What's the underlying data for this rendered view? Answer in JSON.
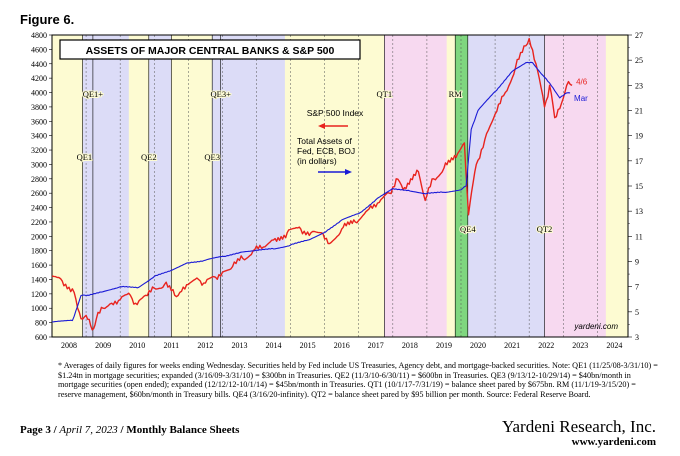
{
  "figure_label": "Figure 6.",
  "footnote": "* Averages of daily figures for weeks ending Wednesday. Securities held by Fed include US Treasuries, Agency debt, and mortgage-backed securities. Note: QE1 (11/25/08-3/31/10) = $1.24tn in mortgage securities; expanded (3/16/09-3/31/10) = $300bn in Treasuries. QE2 (11/3/10-6/30/11) = $600bn in Treasuries. QE3 (9/13/12-10/29/14) = $40bn/month in mortgage securities (open ended); expanded (12/12/12-10/1/14) = $45bn/month in Treasuries. QT1 (10/1/17-7/31/19) = balance sheet pared by $675bn. RM (11/1/19-3/15/20) = reserve management, $60bn/month in Treasury bills. QE4 (3/16/20-infinity). QT2 = balance sheet pared by $95 billion per month. Source: Federal Reserve Board.",
  "footer": {
    "page": "Page 3 /",
    "date": "April 7, 2023",
    "sep": "/",
    "section": "Monthly Balance Sheets",
    "brand": "Yardeni Research, Inc.",
    "url": "www.yardeni.com"
  },
  "chart_data": {
    "type": "line",
    "title": "ASSETS OF MAJOR CENTRAL BANKS & S&P 500",
    "watermark": "yardeni.com",
    "x_range": [
      2008.0,
      2024.9
    ],
    "x_ticks": [
      "2008",
      "2009",
      "2010",
      "2011",
      "2012",
      "2013",
      "2014",
      "2015",
      "2016",
      "2017",
      "2018",
      "2019",
      "2020",
      "2021",
      "2022",
      "2023",
      "2024"
    ],
    "left_axis": {
      "min": 600,
      "max": 4800,
      "step": 200,
      "ticks": [
        "600",
        "800",
        "1000",
        "1200",
        "1400",
        "1600",
        "1800",
        "2000",
        "2200",
        "2400",
        "2600",
        "2800",
        "3000",
        "3200",
        "3400",
        "3600",
        "3800",
        "4000",
        "4200",
        "4400",
        "4600",
        "4800"
      ]
    },
    "right_axis": {
      "min": 3,
      "max": 27,
      "step": 2,
      "ticks": [
        "3",
        "5",
        "7",
        "9",
        "11",
        "13",
        "15",
        "17",
        "19",
        "21",
        "23",
        "25",
        "27"
      ]
    },
    "periods": [
      {
        "label": "QE1",
        "start": 2008.9,
        "end": 2010.25,
        "color": "#dcdcf7"
      },
      {
        "label": "QE1+",
        "start": 2009.2,
        "end": 2010.25,
        "color": "#dcdcf7"
      },
      {
        "label": "QE2",
        "start": 2010.84,
        "end": 2011.5,
        "color": "#dcdcf7"
      },
      {
        "label": "QE3",
        "start": 2012.7,
        "end": 2014.83,
        "color": "#dcdcf7"
      },
      {
        "label": "QE3+",
        "start": 2012.95,
        "end": 2014.83,
        "color": "#dcdcf7"
      },
      {
        "label": "QT1",
        "start": 2017.75,
        "end": 2019.58,
        "color": "#f7d9f0"
      },
      {
        "label": "RM",
        "start": 2019.83,
        "end": 2020.2,
        "color": "#7fd67f"
      },
      {
        "label": "QE4",
        "start": 2020.2,
        "end": 2022.45,
        "color": "#dcdcf7"
      },
      {
        "label": "QT2",
        "start": 2022.45,
        "end": 2024.25,
        "color": "#f7d9f0"
      }
    ],
    "series": [
      {
        "name": "S&P 500 Index",
        "axis": "left",
        "color": "#e8231e",
        "end_label": "4/6",
        "x": [
          2008.0,
          2008.3,
          2008.6,
          2008.75,
          2008.9,
          2009.0,
          2009.18,
          2009.3,
          2009.5,
          2009.75,
          2010.0,
          2010.3,
          2010.5,
          2010.75,
          2011.0,
          2011.3,
          2011.6,
          2011.75,
          2012.0,
          2012.3,
          2012.5,
          2012.8,
          2013.0,
          2013.3,
          2013.6,
          2013.9,
          2014.2,
          2014.5,
          2014.9,
          2015.3,
          2015.6,
          2015.9,
          2016.1,
          2016.5,
          2016.9,
          2017.3,
          2017.6,
          2017.9,
          2018.1,
          2018.3,
          2018.75,
          2018.95,
          2019.2,
          2019.5,
          2019.9,
          2020.1,
          2020.22,
          2020.45,
          2020.7,
          2021.0,
          2021.3,
          2021.6,
          2021.9,
          2022.0,
          2022.2,
          2022.45,
          2022.6,
          2022.75,
          2022.95,
          2023.1,
          2023.26
        ],
        "y": [
          1450,
          1380,
          1270,
          1000,
          850,
          900,
          700,
          850,
          1000,
          1070,
          1120,
          1180,
          1050,
          1180,
          1280,
          1330,
          1180,
          1220,
          1330,
          1400,
          1350,
          1430,
          1500,
          1580,
          1690,
          1800,
          1850,
          1950,
          2050,
          2100,
          2050,
          2050,
          1900,
          2100,
          2200,
          2380,
          2470,
          2600,
          2800,
          2650,
          2900,
          2500,
          2800,
          2950,
          3150,
          3300,
          2300,
          3000,
          3350,
          3700,
          4000,
          4350,
          4650,
          4750,
          4400,
          3800,
          4100,
          3650,
          3850,
          4100,
          4100
        ]
      },
      {
        "name": "Total Assets of Fed, ECB, BOJ (in dollars)",
        "axis": "right",
        "color": "#1a1ad6",
        "end_label": "Mar",
        "x": [
          2008.0,
          2008.6,
          2008.85,
          2009.0,
          2009.5,
          2010.0,
          2010.5,
          2011.0,
          2011.5,
          2012.0,
          2012.5,
          2013.0,
          2013.5,
          2014.0,
          2014.5,
          2015.0,
          2015.5,
          2016.0,
          2016.5,
          2017.0,
          2017.5,
          2018.0,
          2018.5,
          2019.0,
          2019.5,
          2020.0,
          2020.15,
          2020.3,
          2020.5,
          2021.0,
          2021.5,
          2021.9,
          2022.1,
          2022.4,
          2022.7,
          2022.9,
          2023.1,
          2023.2
        ],
        "y": [
          4.2,
          4.3,
          6.3,
          6.3,
          6.6,
          7.0,
          6.9,
          7.8,
          8.3,
          8.9,
          9.1,
          9.4,
          9.7,
          9.9,
          10.0,
          10.3,
          10.7,
          11.3,
          12.3,
          12.8,
          13.9,
          14.8,
          14.6,
          14.4,
          14.5,
          14.7,
          15.0,
          19.5,
          21.0,
          22.5,
          24.1,
          24.8,
          24.8,
          23.8,
          22.8,
          22.0,
          22.4,
          22.4
        ]
      }
    ],
    "legend": [
      {
        "label": "S&P 500 Index",
        "color": "#e8231e"
      },
      {
        "label": "Total Assets of",
        "color": "#1a1ad6"
      },
      {
        "label": "Fed, ECB, BOJ",
        "color": "#1a1ad6"
      },
      {
        "label": "(in dollars)",
        "color": "#1a1ad6"
      }
    ]
  }
}
